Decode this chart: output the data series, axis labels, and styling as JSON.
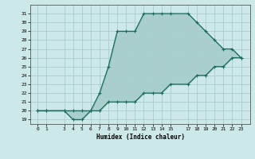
{
  "xlabel": "Humidex (Indice chaleur)",
  "line_color": "#1a6b5a",
  "background_color": "#cce8e8",
  "grid_color": "#aacccc",
  "series1_x": [
    0,
    1,
    3,
    4,
    5,
    6,
    7,
    8,
    9,
    10,
    11,
    12,
    13,
    14,
    15,
    17,
    18,
    19,
    20,
    21,
    22,
    23
  ],
  "series1_y": [
    20,
    20,
    20,
    19,
    19,
    20,
    22,
    25,
    29,
    29,
    29,
    31,
    31,
    31,
    31,
    31,
    30,
    29,
    28,
    27,
    27,
    26
  ],
  "series2_x": [
    0,
    1,
    3,
    4,
    5,
    6,
    7,
    8,
    9,
    10,
    11,
    12,
    13,
    14,
    15,
    17,
    18,
    19,
    20,
    21,
    22,
    23
  ],
  "series2_y": [
    20,
    20,
    20,
    20,
    20,
    20,
    20,
    21,
    21,
    21,
    21,
    22,
    22,
    22,
    23,
    23,
    24,
    24,
    25,
    25,
    26,
    26
  ],
  "ylim": [
    18.5,
    32
  ],
  "xlim": [
    -0.8,
    24
  ],
  "yticks": [
    19,
    20,
    21,
    22,
    23,
    24,
    25,
    26,
    27,
    28,
    29,
    30,
    31
  ],
  "xticks": [
    0,
    1,
    3,
    4,
    5,
    6,
    7,
    8,
    9,
    10,
    11,
    12,
    13,
    14,
    15,
    17,
    18,
    19,
    20,
    21,
    22,
    23
  ],
  "xtick_labels": [
    "0",
    "1",
    "3",
    "4",
    "5",
    "6",
    "7",
    "8",
    "9",
    "10",
    "11",
    "12",
    "13",
    "14",
    "15",
    "17",
    "18",
    "19",
    "20",
    "21",
    "22",
    "23"
  ]
}
